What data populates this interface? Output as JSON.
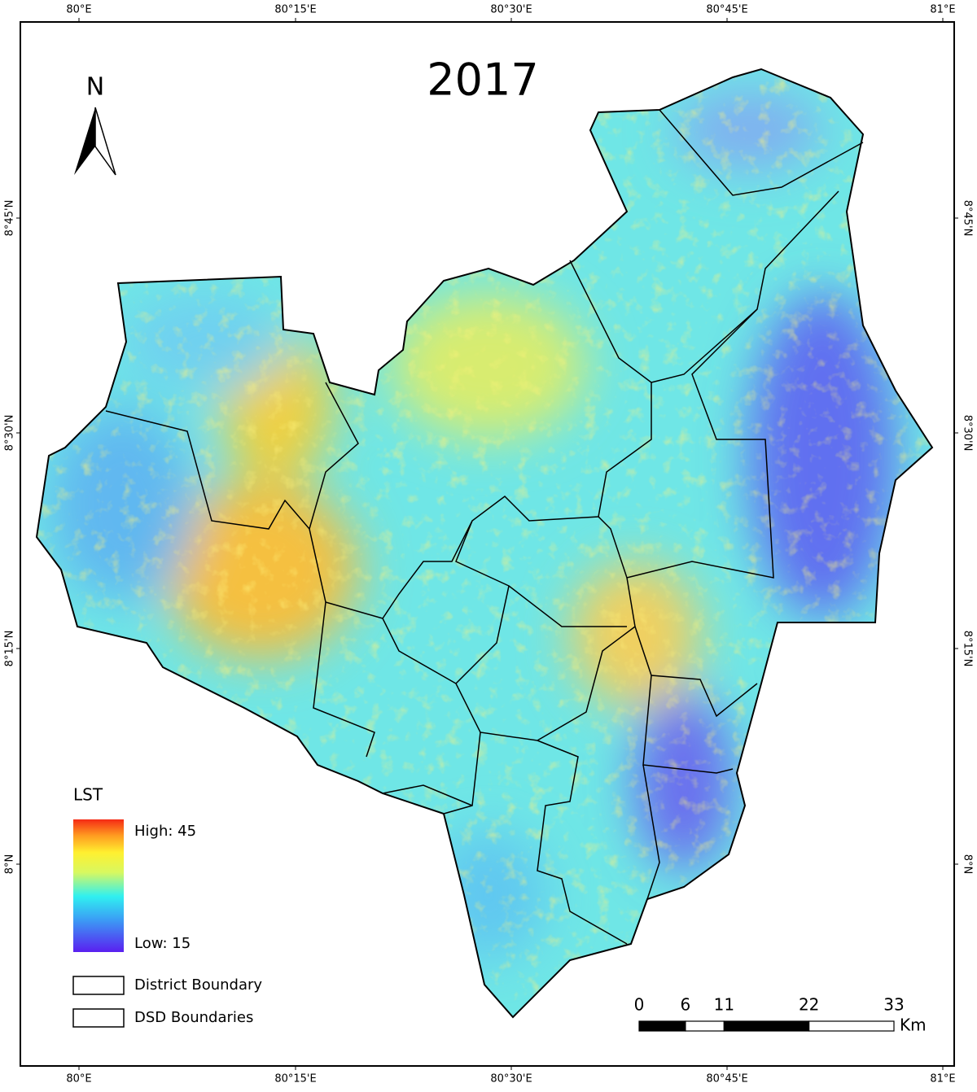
{
  "title": "2017",
  "north": "N",
  "longitudes": [
    "80°E",
    "80°15'E",
    "80°30'E",
    "80°45'E",
    "81°E"
  ],
  "latitudes": [
    "8°45'N",
    "8°30'N",
    "8°15'N",
    "8°N"
  ],
  "legend": {
    "title": "LST",
    "high": "High: 45",
    "low": "Low: 15",
    "items": [
      "District Boundary",
      "DSD Boundaries"
    ]
  },
  "scale_bar": {
    "ticks": [
      0,
      6,
      11,
      22,
      33
    ],
    "unit": "Km"
  }
}
